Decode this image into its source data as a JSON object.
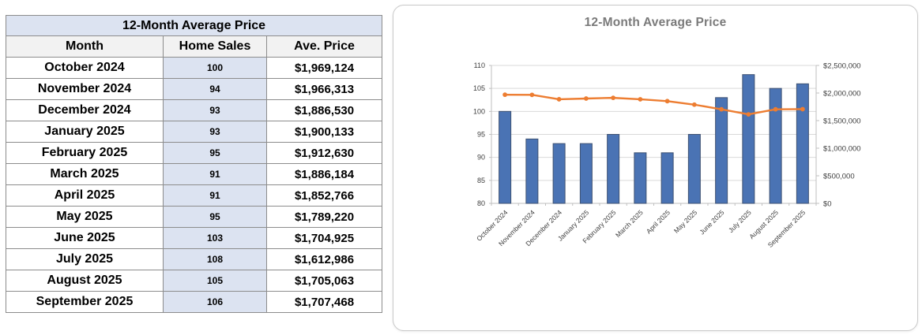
{
  "table": {
    "title": "12-Month Average Price",
    "columns": [
      "Month",
      "Home Sales",
      "Ave. Price"
    ],
    "rows": [
      [
        "October 2024",
        "100",
        "$1,969,124"
      ],
      [
        "November 2024",
        "94",
        "$1,966,313"
      ],
      [
        "December 2024",
        "93",
        "$1,886,530"
      ],
      [
        "January 2025",
        "93",
        "$1,900,133"
      ],
      [
        "February 2025",
        "95",
        "$1,912,630"
      ],
      [
        "March 2025",
        "91",
        "$1,886,184"
      ],
      [
        "April 2025",
        "91",
        "$1,852,766"
      ],
      [
        "May 2025",
        "95",
        "$1,789,220"
      ],
      [
        "June 2025",
        "103",
        "$1,704,925"
      ],
      [
        "July 2025",
        "108",
        "$1,612,986"
      ],
      [
        "August 2025",
        "105",
        "$1,705,063"
      ],
      [
        "September 2025",
        "106",
        "$1,707,468"
      ]
    ]
  },
  "chart_data": {
    "type": "bar",
    "title": "12-Month Average Price",
    "categories": [
      "October 2024",
      "November 2024",
      "December 2024",
      "January 2025",
      "February 2025",
      "March 2025",
      "April 2025",
      "May 2025",
      "June 2025",
      "July 2025",
      "August 2025",
      "September 2025"
    ],
    "series": [
      {
        "name": "Home Sales",
        "kind": "bar",
        "axis": "left",
        "values": [
          100,
          94,
          93,
          93,
          95,
          91,
          91,
          95,
          103,
          108,
          105,
          106
        ]
      },
      {
        "name": "Ave. Price",
        "kind": "line",
        "axis": "right",
        "values": [
          1969124,
          1966313,
          1886530,
          1900133,
          1912630,
          1886184,
          1852766,
          1789220,
          1704925,
          1612986,
          1705063,
          1707468
        ]
      }
    ],
    "left_axis": {
      "min": 80,
      "max": 110,
      "step": 5,
      "tick_labels": [
        "80",
        "85",
        "90",
        "95",
        "100",
        "105",
        "110"
      ]
    },
    "right_axis": {
      "min": 0,
      "max": 2500000,
      "step": 500000,
      "tick_labels": [
        "$0",
        "$500,000",
        "$1,000,000",
        "$1,500,000",
        "$2,000,000",
        "$2,500,000"
      ]
    },
    "grid": true,
    "legend": "none",
    "x_label_rotation": -45
  },
  "colors": {
    "bar_fill": "#4a73b4",
    "bar_border": "#3f5272",
    "line": "#ed7d31",
    "marker": "#ed7d31",
    "gridline": "#d9d9d9",
    "axis_line": "#bfbfbf",
    "axis_text": "#404040",
    "chart_title": "#7a7a7a"
  }
}
